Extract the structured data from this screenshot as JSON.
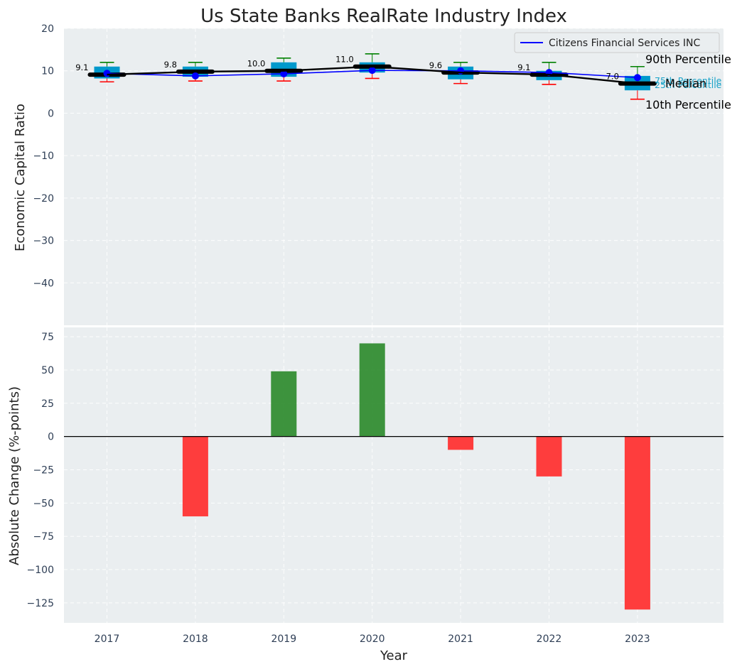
{
  "chart_data": [
    {
      "type": "box",
      "title": "Us State Banks RealRate Industry Index",
      "ylabel": "Economic Capital Ratio",
      "ylim": [
        -50,
        20
      ],
      "yticks": [
        20,
        10,
        0,
        -10,
        -20,
        -30,
        -40
      ],
      "grid": true,
      "categories": [
        "2017",
        "2018",
        "2019",
        "2020",
        "2021",
        "2022",
        "2023"
      ],
      "boxes": [
        {
          "year": "2017",
          "p10": 7.4,
          "p25": 8.2,
          "median": 9.1,
          "p75": 11.0,
          "p90": 12.0
        },
        {
          "year": "2018",
          "p10": 7.6,
          "p25": 8.6,
          "median": 9.8,
          "p75": 11.0,
          "p90": 12.0
        },
        {
          "year": "2019",
          "p10": 7.6,
          "p25": 8.6,
          "median": 10.0,
          "p75": 12.0,
          "p90": 13.0
        },
        {
          "year": "2020",
          "p10": 8.2,
          "p25": 9.6,
          "median": 11.0,
          "p75": 12.0,
          "p90": 14.0
        },
        {
          "year": "2021",
          "p10": 7.0,
          "p25": 8.0,
          "median": 9.6,
          "p75": 11.0,
          "p90": 12.0
        },
        {
          "year": "2022",
          "p10": 6.8,
          "p25": 7.8,
          "median": 9.1,
          "p75": 10.0,
          "p90": 12.0
        },
        {
          "year": "2023",
          "p10": 3.3,
          "p25": 5.4,
          "median": 7.0,
          "p75": 8.8,
          "p90": 11.0
        }
      ],
      "median_labels": [
        "9.1",
        "9.8",
        "10.0",
        "11.0",
        "9.6",
        "9.1",
        "7.0"
      ],
      "series": [
        {
          "name": "Citizens Financial Services INC",
          "values": [
            9.4,
            8.8,
            9.3,
            10.1,
            10.0,
            9.6,
            8.4
          ]
        }
      ],
      "legend": {
        "position": "top-right",
        "label": "Citizens Financial Services INC"
      },
      "annotations": {
        "p90": "90th Percentile",
        "p75": "75th Percentile",
        "median": "Median",
        "p25": "25th Percentile",
        "p10": "10th Percentile"
      },
      "colors": {
        "box": "#0099cc",
        "median": "#000000",
        "series": "#0000ff",
        "whisker_high": "#008000",
        "whisker_low": "#ff0000",
        "background": "#eaeef0",
        "percentile_label": "#1aa3c8"
      }
    },
    {
      "type": "bar",
      "xlabel": "Year",
      "ylabel": "Absolute Change (%-points)",
      "ylim": [
        -140,
        82
      ],
      "yticks": [
        75,
        50,
        25,
        0,
        -25,
        -50,
        -75,
        -100,
        -125
      ],
      "grid": true,
      "categories": [
        "2017",
        "2018",
        "2019",
        "2020",
        "2021",
        "2022",
        "2023"
      ],
      "values": [
        0,
        -60,
        49,
        70,
        -10,
        -30,
        -130
      ],
      "colors": {
        "positive": "#2e8b2e",
        "negative": "#ff3333"
      }
    }
  ]
}
